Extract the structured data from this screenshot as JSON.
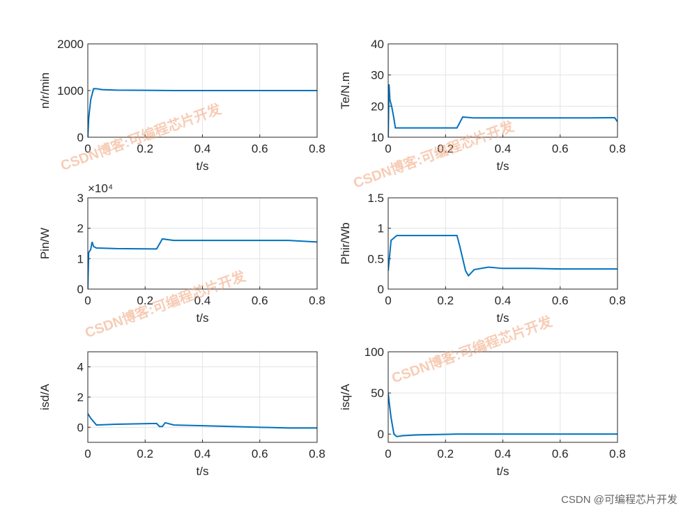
{
  "chart_data": [
    {
      "type": "line",
      "y_label": "n/r/min",
      "x_label": "t/s",
      "xlim": [
        0,
        0.8
      ],
      "xticks": [
        0,
        0.2,
        0.4,
        0.6,
        0.8
      ],
      "ylim": [
        0,
        2000
      ],
      "yticks": [
        0,
        1000,
        2000
      ],
      "grid": true,
      "series": [
        {
          "color": "#0072bd",
          "x": [
            0,
            0.003,
            0.01,
            0.02,
            0.03,
            0.05,
            0.1,
            0.2,
            0.3,
            0.4,
            0.5,
            0.6,
            0.7,
            0.8
          ],
          "values": [
            0,
            400,
            800,
            1040,
            1040,
            1020,
            1010,
            1005,
            1000,
            1000,
            1000,
            1000,
            1000,
            1000
          ]
        }
      ]
    },
    {
      "type": "line",
      "y_label": "Te/N.m",
      "x_label": "t/s",
      "xlim": [
        0,
        0.8
      ],
      "xticks": [
        0,
        0.2,
        0.4,
        0.6,
        0.8
      ],
      "ylim": [
        10,
        40
      ],
      "yticks": [
        10,
        20,
        30,
        40
      ],
      "grid": true,
      "series": [
        {
          "color": "#0072bd",
          "x": [
            0,
            0.003,
            0.006,
            0.012,
            0.02,
            0.025,
            0.1,
            0.24,
            0.26,
            0.3,
            0.5,
            0.7,
            0.79,
            0.8
          ],
          "values": [
            10,
            27,
            22,
            20,
            16,
            13,
            13,
            13,
            16.5,
            16.2,
            16.2,
            16.2,
            16.3,
            15
          ]
        }
      ]
    },
    {
      "type": "line",
      "y_label": "Pin/W",
      "y_multiplier": "×10⁴",
      "x_label": "t/s",
      "xlim": [
        0,
        0.8
      ],
      "xticks": [
        0,
        0.2,
        0.4,
        0.6,
        0.8
      ],
      "ylim": [
        0,
        3
      ],
      "yticks": [
        0,
        1,
        2,
        3
      ],
      "grid": true,
      "series": [
        {
          "color": "#0072bd",
          "x": [
            0,
            0.003,
            0.01,
            0.015,
            0.02,
            0.03,
            0.1,
            0.24,
            0.26,
            0.3,
            0.5,
            0.7,
            0.8
          ],
          "values": [
            0,
            1.2,
            1.3,
            1.55,
            1.4,
            1.35,
            1.33,
            1.32,
            1.65,
            1.6,
            1.6,
            1.6,
            1.55
          ]
        }
      ]
    },
    {
      "type": "line",
      "y_label": "Phir/Wb",
      "x_label": "t/s",
      "xlim": [
        0,
        0.8
      ],
      "xticks": [
        0,
        0.2,
        0.4,
        0.6,
        0.8
      ],
      "ylim": [
        0,
        1.5
      ],
      "yticks": [
        0,
        0.5,
        1,
        1.5
      ],
      "grid": true,
      "series": [
        {
          "color": "#0072bd",
          "x": [
            0,
            0.01,
            0.03,
            0.1,
            0.24,
            0.25,
            0.27,
            0.28,
            0.3,
            0.35,
            0.4,
            0.5,
            0.6,
            0.7,
            0.8
          ],
          "values": [
            0.3,
            0.8,
            0.88,
            0.88,
            0.88,
            0.7,
            0.3,
            0.22,
            0.32,
            0.36,
            0.34,
            0.34,
            0.33,
            0.33,
            0.33
          ]
        }
      ]
    },
    {
      "type": "line",
      "y_label": "isd/A",
      "x_label": "t/s",
      "xlim": [
        0,
        0.8
      ],
      "xticks": [
        0,
        0.2,
        0.4,
        0.6,
        0.8
      ],
      "ylim": [
        -1,
        5
      ],
      "yticks": [
        0,
        2,
        4
      ],
      "grid": true,
      "series": [
        {
          "color": "#0072bd",
          "x": [
            0,
            0.01,
            0.03,
            0.1,
            0.24,
            0.25,
            0.26,
            0.27,
            0.28,
            0.3,
            0.4,
            0.5,
            0.6,
            0.7,
            0.8
          ],
          "values": [
            0.9,
            0.6,
            0.15,
            0.2,
            0.25,
            0.05,
            0.05,
            0.3,
            0.25,
            0.15,
            0.1,
            0.05,
            0,
            -0.05,
            -0.05
          ]
        }
      ]
    },
    {
      "type": "line",
      "y_label": "isq/A",
      "x_label": "t/s",
      "xlim": [
        0,
        0.8
      ],
      "xticks": [
        0,
        0.2,
        0.4,
        0.6,
        0.8
      ],
      "ylim": [
        -10,
        100
      ],
      "yticks": [
        0,
        50,
        100
      ],
      "grid": true,
      "series": [
        {
          "color": "#0072bd",
          "x": [
            0,
            0.003,
            0.01,
            0.02,
            0.03,
            0.05,
            0.1,
            0.24,
            0.3,
            0.5,
            0.8
          ],
          "values": [
            50,
            40,
            20,
            0,
            -3,
            -2,
            -1,
            0,
            0,
            0,
            0
          ]
        }
      ]
    }
  ],
  "watermarks": [
    "CSDN博客:可编程芯片开发",
    "CSDN博客:可编程芯片开发",
    "CSDN博客:可编程芯片开发",
    "CSDN博客:可编程芯片开发"
  ],
  "footer": "CSDN @可编程芯片开发"
}
